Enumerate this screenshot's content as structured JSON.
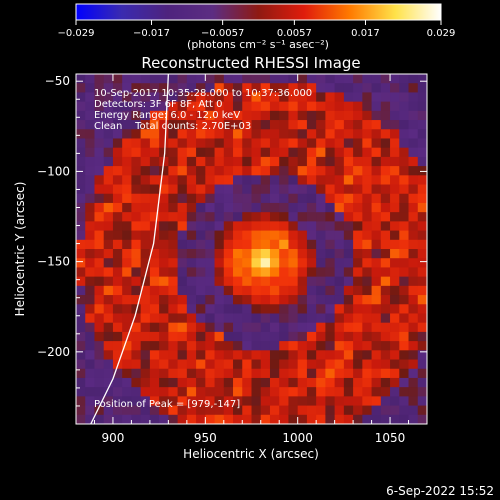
{
  "chart_data": {
    "type": "heatmap",
    "title": "Reconstructed RHESSI Image",
    "xlabel": "Heliocentric X (arcsec)",
    "ylabel": "Heliocentric Y (arcsec)",
    "xlim": [
      880,
      1070
    ],
    "ylim": [
      -240,
      -46
    ],
    "xticks": [
      900,
      950,
      1000,
      1050
    ],
    "yticks": [
      -50,
      -100,
      -150,
      -200
    ],
    "colorbar": {
      "min": -0.029,
      "max": 0.029,
      "tick_labels": [
        "-0.029",
        "-0.017",
        "-0.0057",
        "0.0057",
        "0.017",
        "0.029"
      ],
      "units_label": "(photons cm⁻² s⁻¹ asec⁻²)",
      "colormap": [
        "#0000ff",
        "#3a2ab0",
        "#4e237e",
        "#5c2d82",
        "#8f1a12",
        "#e01c0c",
        "#ff7a00",
        "#ffe24a",
        "#ffffff"
      ]
    },
    "annotations": [
      "10-Sep-2017 10:35:28.000 to 10:37:36.000",
      "Detectors: 3F 6F 8F, Att 0",
      "Energy Range: 6.0 - 12.0 keV",
      "Clean    Total counts: 2.70E+03"
    ],
    "peak_label": "Position of Peak = [979,-147]",
    "peak": {
      "x": 979,
      "y": -147
    },
    "limb_line": [
      [
        930,
        -46
      ],
      [
        928,
        -90
      ],
      [
        922,
        -140
      ],
      [
        912,
        -180
      ],
      [
        900,
        -215
      ],
      [
        888,
        -240
      ]
    ],
    "grid": false,
    "timestamp": "6-Sep-2022 15:52"
  }
}
